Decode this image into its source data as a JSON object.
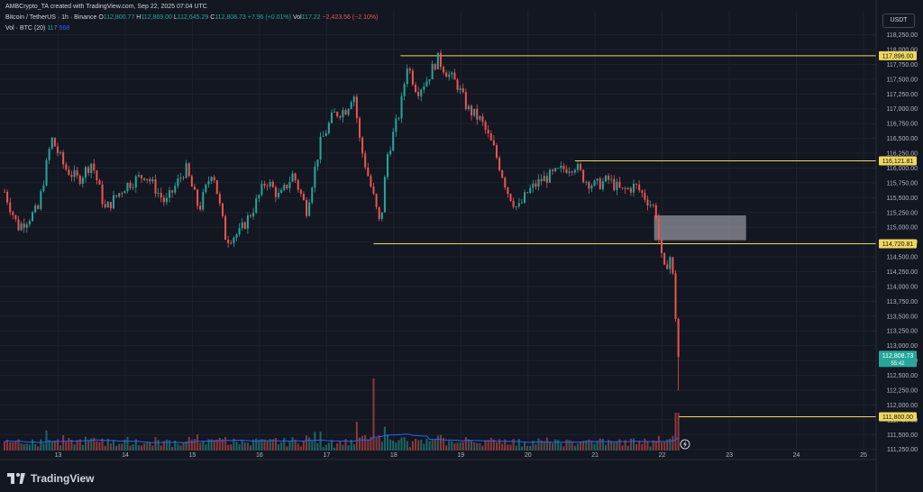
{
  "header": {
    "author_line": "AMBCrypto_TA created with TradingView.com, Sep 22, 2025 07:04 UTC",
    "symbol": "Bitcoin / TetherUS · 1h · Binance",
    "o_label": "O",
    "o_value": "112,800.77",
    "h_label": "H",
    "h_value": "112,869.00",
    "l_label": "L",
    "l_value": "112,645.29",
    "c_label": "C",
    "c_value": "112,808.73",
    "change": "+7.96 (+0.01%)",
    "vol_label": "Vol",
    "vol_value": "117.22",
    "vol_change": "−2,423.56 (−2.10%)"
  },
  "volume_legend": {
    "label": "Vol · BTC (20)",
    "v1": "117",
    "v2": "568"
  },
  "currency_button": "USDT",
  "brand": "TradingView",
  "colors": {
    "up": "#26a69a",
    "down": "#ef5350",
    "level": "#f0d75c",
    "zone": "#8f9199",
    "vol_ma": "#2962ff",
    "price_tag": "#26a69a",
    "background": "#131722"
  },
  "chart_data": {
    "type": "candlestick",
    "timeframe": "1h",
    "x_ticks": [
      "13",
      "14",
      "15",
      "16",
      "17",
      "18",
      "19",
      "20",
      "21",
      "22",
      "23",
      "24",
      "25"
    ],
    "y_ticks": [
      "118,250.00",
      "118,000.00",
      "117,750.00",
      "117,500.00",
      "117,250.00",
      "117,000.00",
      "116,750.00",
      "116,500.00",
      "116,250.00",
      "116,000.00",
      "115,750.00",
      "115,500.00",
      "115,250.00",
      "115,000.00",
      "114,750.00",
      "114,500.00",
      "114,250.00",
      "114,000.00",
      "113,750.00",
      "113,500.00",
      "113,250.00",
      "113,000.00",
      "112,750.00",
      "112,500.00",
      "112,250.00",
      "112,000.00",
      "111,750.00",
      "111,500.00",
      "111,250.00"
    ],
    "ylim": [
      111200,
      118350
    ],
    "levels": [
      {
        "price": 117896.0,
        "label": "117,896.00",
        "from_day": 18.1
      },
      {
        "price": 116121.81,
        "label": "116,121.81",
        "from_day": 20.7
      },
      {
        "price": 114720.81,
        "label": "114,720.81",
        "from_day": 17.7
      },
      {
        "price": 111800.0,
        "label": "111,800.00",
        "from_day": 22.25
      }
    ],
    "zone": {
      "from_day": 21.88,
      "to_day": 23.25,
      "low": 114780,
      "high": 115200
    },
    "last_price": {
      "value": "112,808.73",
      "countdown": "55:42",
      "price": 112808.73
    },
    "anchors": [
      [
        12.2,
        115600
      ],
      [
        12.4,
        115000
      ],
      [
        12.7,
        115300
      ],
      [
        12.9,
        116500
      ],
      [
        13.1,
        116000
      ],
      [
        13.3,
        115800
      ],
      [
        13.5,
        116100
      ],
      [
        13.7,
        115300
      ],
      [
        14.0,
        115700
      ],
      [
        14.3,
        115900
      ],
      [
        14.6,
        115400
      ],
      [
        14.9,
        116000
      ],
      [
        15.1,
        115300
      ],
      [
        15.3,
        116000
      ],
      [
        15.5,
        114800
      ],
      [
        15.7,
        114900
      ],
      [
        15.9,
        115300
      ],
      [
        16.1,
        115800
      ],
      [
        16.3,
        115500
      ],
      [
        16.5,
        115900
      ],
      [
        16.7,
        115300
      ],
      [
        16.9,
        116400
      ],
      [
        17.1,
        116900
      ],
      [
        17.3,
        117000
      ],
      [
        17.4,
        117300
      ],
      [
        17.5,
        116400
      ],
      [
        17.7,
        115500
      ],
      [
        17.8,
        115000
      ],
      [
        17.9,
        116200
      ],
      [
        18.1,
        117000
      ],
      [
        18.2,
        117750
      ],
      [
        18.35,
        117300
      ],
      [
        18.5,
        117500
      ],
      [
        18.65,
        117850
      ],
      [
        18.8,
        117600
      ],
      [
        18.95,
        117400
      ],
      [
        19.1,
        117000
      ],
      [
        19.3,
        116800
      ],
      [
        19.5,
        116300
      ],
      [
        19.7,
        115600
      ],
      [
        19.85,
        115300
      ],
      [
        20.0,
        115600
      ],
      [
        20.2,
        115800
      ],
      [
        20.4,
        115900
      ],
      [
        20.55,
        116000
      ],
      [
        20.7,
        116050
      ],
      [
        20.85,
        115800
      ],
      [
        21.0,
        115700
      ],
      [
        21.2,
        115800
      ],
      [
        21.4,
        115600
      ],
      [
        21.6,
        115700
      ],
      [
        21.75,
        115500
      ],
      [
        21.9,
        115300
      ],
      [
        21.95,
        114800
      ],
      [
        22.0,
        114400
      ],
      [
        22.05,
        114200
      ],
      [
        22.1,
        114600
      ],
      [
        22.15,
        114300
      ],
      [
        22.2,
        113500
      ],
      [
        22.25,
        112000
      ],
      [
        22.27,
        112808.73
      ]
    ]
  }
}
